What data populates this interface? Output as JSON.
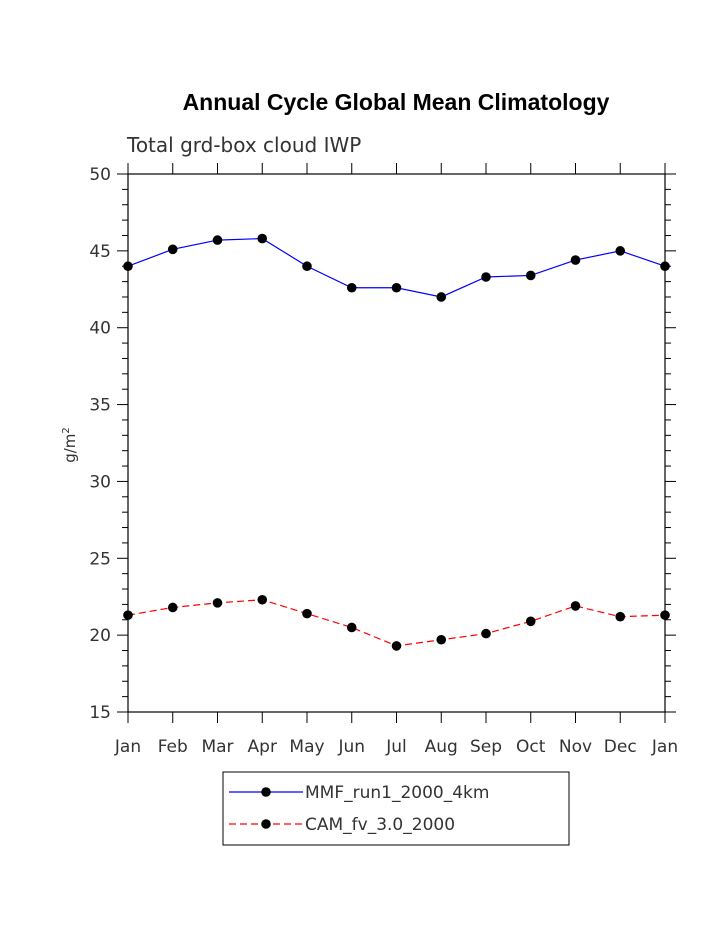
{
  "chart_data": {
    "type": "line",
    "title": "Annual Cycle Global Mean Climatology",
    "subtitle": "Total grd-box cloud IWP",
    "ylabel": "g/m",
    "ylabel_superscript": "2",
    "xlabel": "",
    "categories": [
      "Jan",
      "Feb",
      "Mar",
      "Apr",
      "May",
      "Jun",
      "Jul",
      "Aug",
      "Sep",
      "Oct",
      "Nov",
      "Dec",
      "Jan"
    ],
    "ylim": [
      15,
      50
    ],
    "yticks": [
      15,
      20,
      25,
      30,
      35,
      40,
      45,
      50
    ],
    "grid": false,
    "legend_position": "bottom",
    "series": [
      {
        "name": "MMF_run1_2000_4km",
        "color": "#0000ff",
        "dash": "solid",
        "marker": "filled-circle",
        "values": [
          44.0,
          45.1,
          45.7,
          45.8,
          44.0,
          42.6,
          42.6,
          42.0,
          43.3,
          43.4,
          44.4,
          45.0,
          44.0
        ]
      },
      {
        "name": "CAM_fv_3.0_2000",
        "color": "#ff0000",
        "dash": "dashed",
        "marker": "filled-circle",
        "values": [
          21.3,
          21.8,
          22.1,
          22.3,
          21.4,
          20.5,
          19.3,
          19.7,
          20.1,
          20.9,
          21.9,
          21.2,
          21.3
        ]
      }
    ]
  }
}
